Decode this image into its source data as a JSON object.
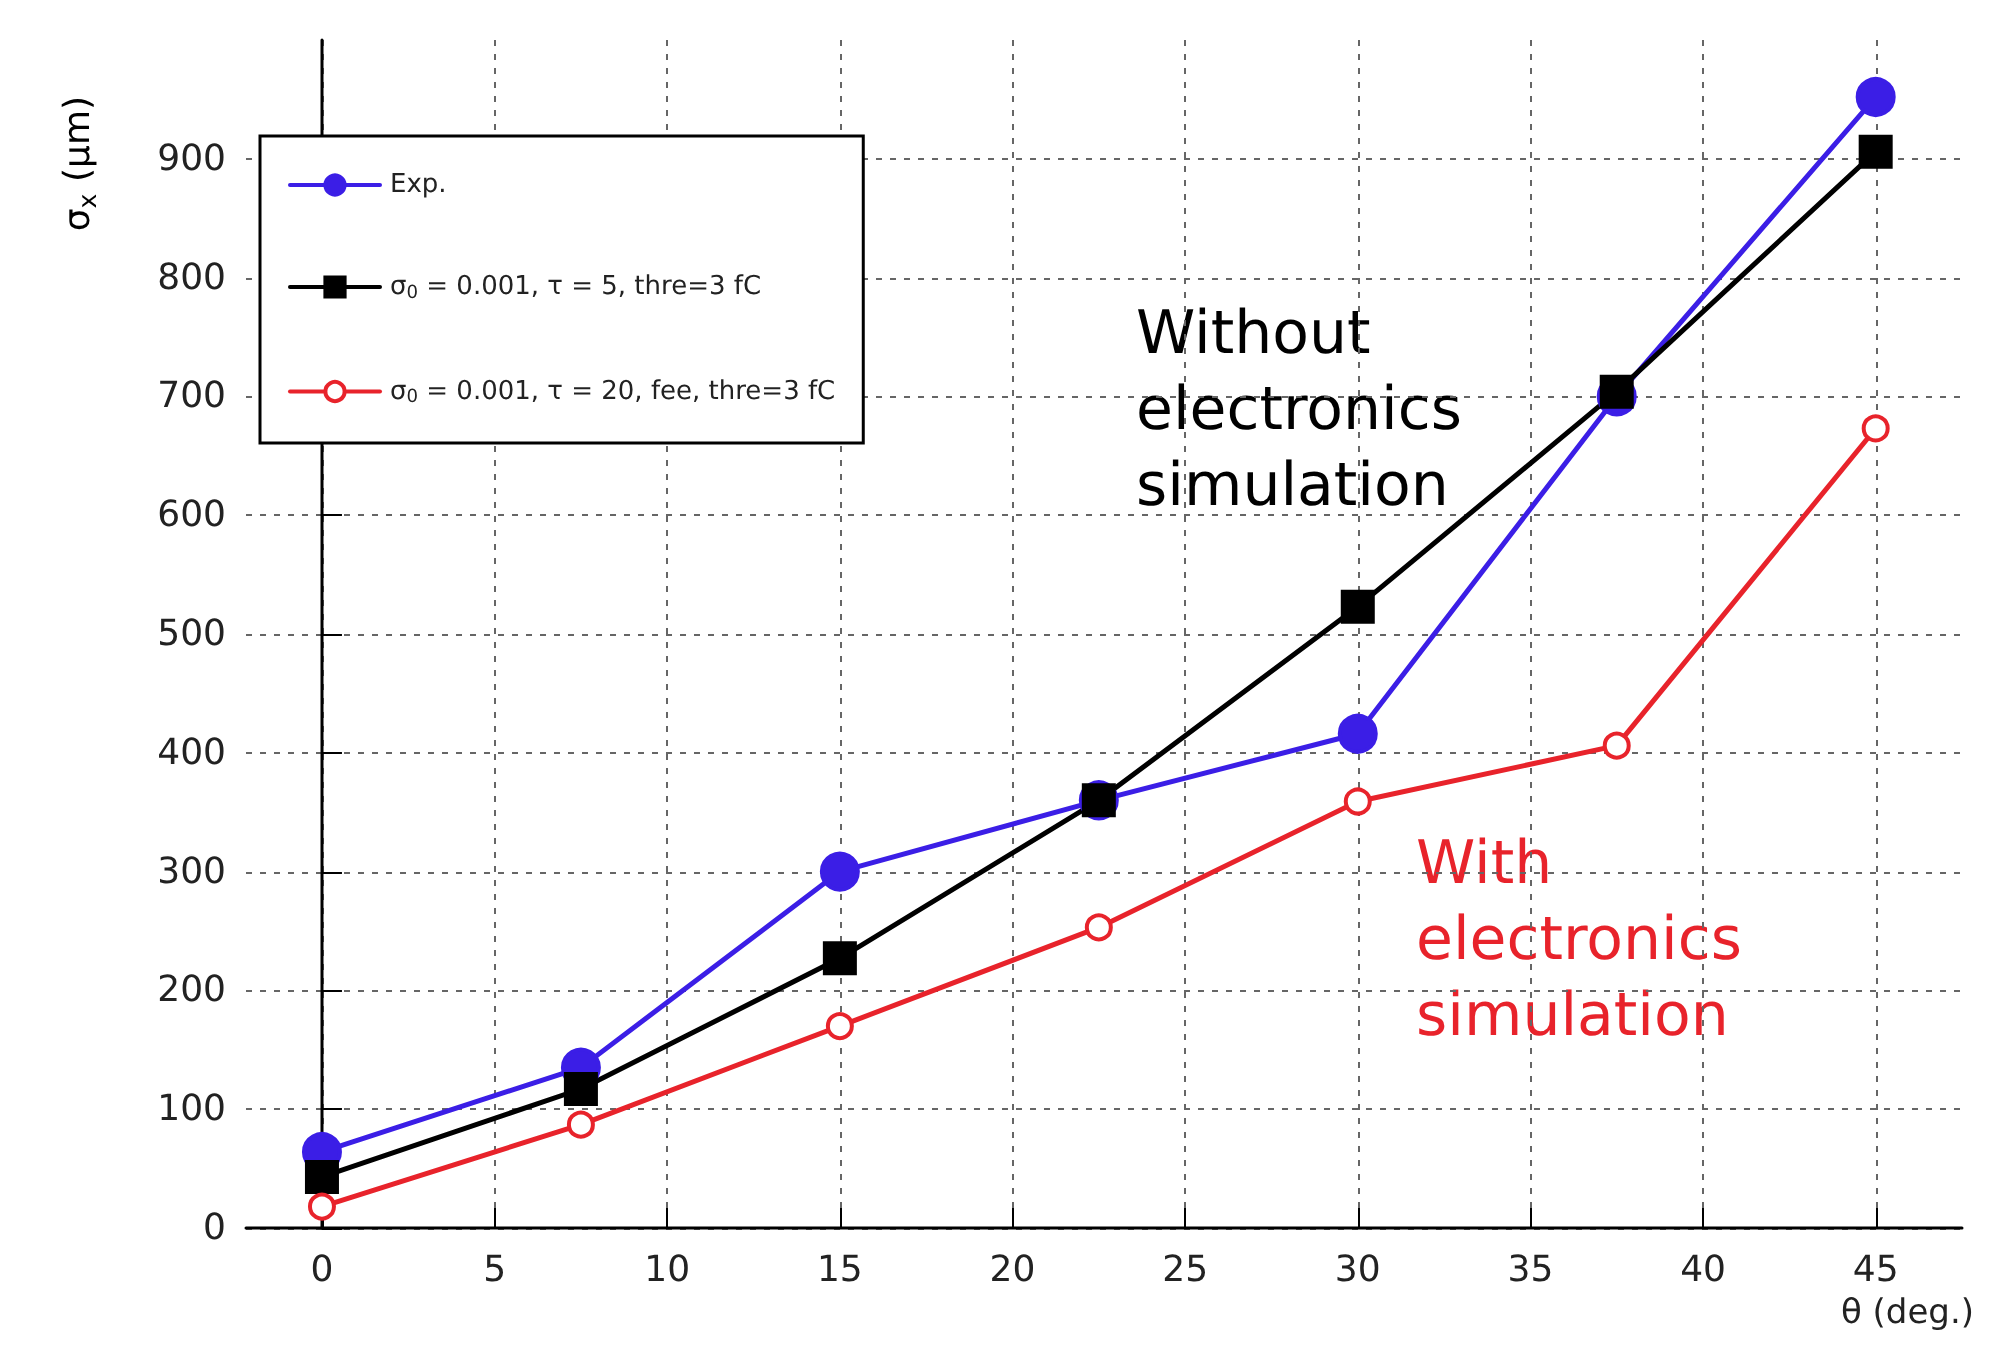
{
  "chart_data": {
    "type": "line",
    "xlabel": "θ (deg.)",
    "ylabel": "σ$_{x}$ (μm)",
    "x": [
      0,
      7.5,
      15,
      22.5,
      30,
      37.5,
      45
    ],
    "series": [
      {
        "name": "Exp.",
        "color": "#3b1ee6",
        "marker": "circle",
        "values": [
          64,
          135,
          300,
          360,
          416,
          700,
          952
        ]
      },
      {
        "name": "σ$_{0}$ = 0.001, τ = 5, thre=3 fC",
        "color": "#000000",
        "marker": "square",
        "values": [
          43,
          117,
          227,
          360,
          523,
          704,
          906
        ]
      },
      {
        "name": "σ$_{0}$ = 0.001, τ = 20, fee, thre=3 fC",
        "color": "#e8232b",
        "marker": "emptyCircle",
        "values": [
          18,
          87,
          170,
          253,
          359,
          406,
          673
        ]
      }
    ],
    "annotations": [
      "Without electronics simulation",
      "With electronics simulation"
    ],
    "xlim": [
      -2.2,
      47.5
    ],
    "xticks": [
      0,
      5,
      10,
      15,
      20,
      25,
      30,
      35,
      40,
      45
    ],
    "ylim": [
      0,
      1000
    ],
    "yticks": [
      0,
      100,
      200,
      300,
      400,
      500,
      600,
      700,
      800,
      900
    ],
    "grid": true,
    "legend": "top left",
    "line_style": "solid"
  }
}
